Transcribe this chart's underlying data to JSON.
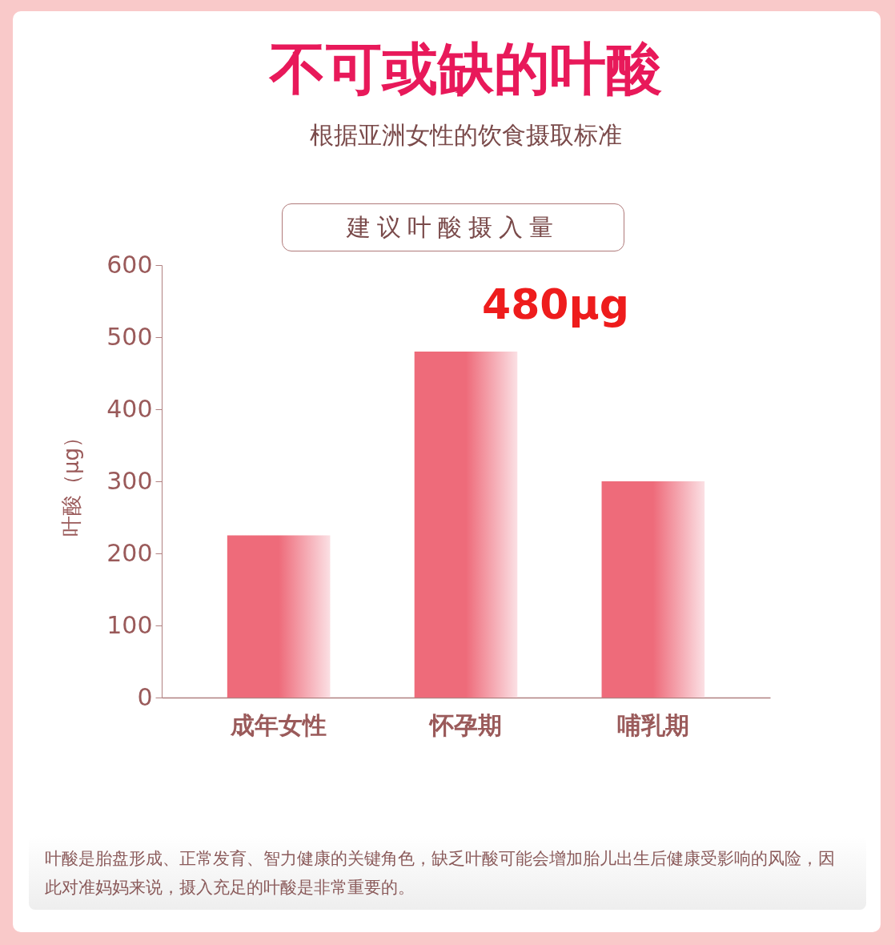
{
  "chart_data": {
    "type": "bar",
    "title": "不可或缺的叶酸",
    "subtitle": "根据亚洲女性的饮食摄取标准",
    "ylabel": "叶酸（μg）",
    "categories": [
      "成年女性",
      "怀孕期",
      "哺乳期"
    ],
    "values": [
      225,
      480,
      300
    ],
    "color": "#ee6b7a",
    "ylim": [
      0,
      600
    ],
    "yticks": [
      0,
      100,
      200,
      300,
      400,
      500,
      600
    ],
    "grid": false,
    "annotations": [
      "建议叶酸摄入量",
      {
        "text": "480μg",
        "x": "怀孕期",
        "y": 480
      },
      "叶酸是胎盘形成、正常发育、智力健康的关键角色，缺乏叶酸可能会增加胎儿出生后健康受影响的风险，因此对准妈妈来说，摄入充足的叶酸是非常重要的。"
    ]
  }
}
